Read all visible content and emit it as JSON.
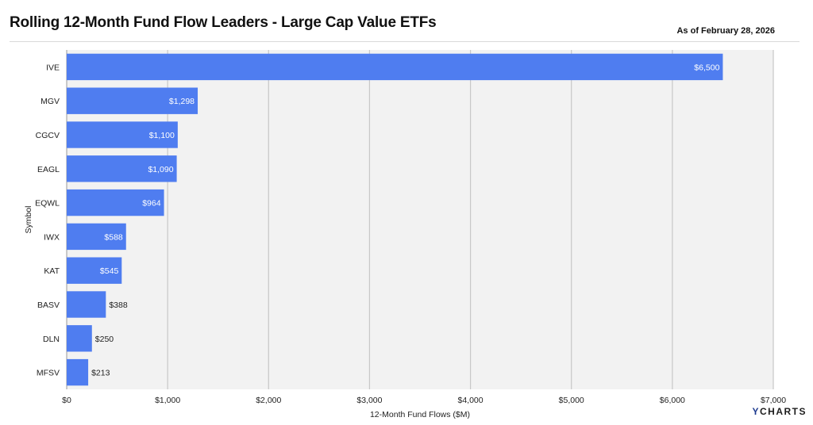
{
  "header": {
    "title": "Rolling 12-Month Fund Flow Leaders - Large Cap Value ETFs",
    "as_of": "As of February 28, 2026"
  },
  "brand": {
    "logo_text": "YCHARTS"
  },
  "colors": {
    "bar": "#4f7df0",
    "plot_bg": "#f2f2f2",
    "grid": "#c8c8c8"
  },
  "chart_data": {
    "type": "bar",
    "orientation": "horizontal",
    "title": "Rolling 12-Month Fund Flow Leaders - Large Cap Value ETFs",
    "xlabel": "12-Month Fund Flows ($M)",
    "ylabel": "Symbol",
    "xlim": [
      0,
      7000
    ],
    "grid": true,
    "x_ticks": [
      0,
      1000,
      2000,
      3000,
      4000,
      5000,
      6000,
      7000
    ],
    "x_tick_labels": [
      "$0",
      "$1,000",
      "$2,000",
      "$3,000",
      "$4,000",
      "$5,000",
      "$6,000",
      "$7,000"
    ],
    "categories": [
      "IVE",
      "MGV",
      "CGCV",
      "EAGL",
      "EQWL",
      "IWX",
      "KAT",
      "BASV",
      "DLN",
      "MFSV"
    ],
    "values": [
      6500,
      1298,
      1100,
      1090,
      964,
      588,
      545,
      388,
      250,
      213
    ],
    "data_labels": [
      "$6,500",
      "$1,298",
      "$1,100",
      "$1,090",
      "$964",
      "$588",
      "$545",
      "$388",
      "$250",
      "$213"
    ]
  }
}
